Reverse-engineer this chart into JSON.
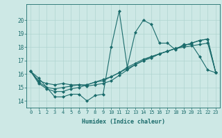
{
  "title": "",
  "xlabel": "Humidex (Indice chaleur)",
  "background_color": "#cde8e5",
  "grid_color": "#afd4d0",
  "line_color": "#1a6b6b",
  "xlim": [
    -0.5,
    23.5
  ],
  "ylim": [
    13.5,
    21.2
  ],
  "xticks": [
    0,
    1,
    2,
    3,
    4,
    5,
    6,
    7,
    8,
    9,
    10,
    11,
    12,
    13,
    14,
    15,
    16,
    17,
    18,
    19,
    20,
    21,
    22,
    23
  ],
  "yticks": [
    14,
    15,
    16,
    17,
    18,
    19,
    20
  ],
  "series": [
    [
      16.2,
      15.7,
      15.0,
      14.3,
      14.3,
      14.5,
      14.5,
      14.0,
      14.4,
      14.5,
      18.0,
      20.7,
      16.5,
      19.1,
      20.0,
      19.7,
      18.3,
      18.3,
      17.8,
      18.2,
      18.2,
      17.3,
      16.3,
      16.1
    ],
    [
      16.2,
      15.5,
      15.3,
      15.2,
      15.3,
      15.2,
      15.2,
      15.1,
      15.2,
      15.3,
      15.5,
      15.9,
      16.3,
      16.7,
      17.0,
      17.3,
      17.5,
      17.7,
      17.9,
      18.0,
      18.1,
      18.2,
      18.3,
      16.1
    ],
    [
      16.2,
      15.4,
      15.0,
      14.9,
      15.0,
      15.1,
      15.2,
      15.2,
      15.4,
      15.5,
      15.8,
      16.1,
      16.5,
      16.8,
      17.1,
      17.3,
      17.5,
      17.7,
      17.9,
      18.1,
      18.3,
      18.5,
      18.6,
      16.1
    ],
    [
      16.2,
      15.3,
      14.9,
      14.7,
      14.7,
      14.9,
      15.0,
      15.2,
      15.4,
      15.6,
      15.8,
      16.1,
      16.4,
      16.7,
      17.0,
      17.2,
      17.5,
      17.7,
      17.9,
      18.1,
      18.3,
      18.5,
      18.6,
      16.1
    ]
  ]
}
